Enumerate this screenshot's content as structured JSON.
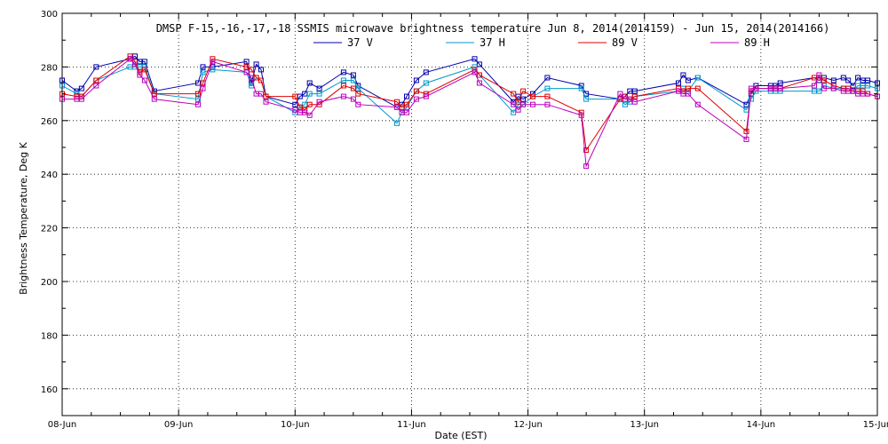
{
  "chart_data": {
    "type": "line",
    "title": "DMSP F-15,-16,-17,-18 SSMIS microwave brightness temperature Jun  8, 2014(2014159) - Jun 15, 2014(2014166)",
    "xlabel": "Date (EST)",
    "ylabel": "Brightness Temperature, Deg K",
    "xlim": [
      "2014-06-08T00:00",
      "2014-06-15T00:00"
    ],
    "ylim": [
      150,
      300
    ],
    "x_tick_labels": [
      "08-Jun",
      "09-Jun",
      "10-Jun",
      "11-Jun",
      "12-Jun",
      "13-Jun",
      "14-Jun",
      "15-Jun"
    ],
    "y_tick_labels": [
      "160",
      "180",
      "200",
      "220",
      "240",
      "260",
      "280",
      "300"
    ],
    "y_ticks": [
      160,
      180,
      200,
      220,
      240,
      260,
      280,
      300
    ],
    "grid": true,
    "legend_position": "top",
    "series": [
      {
        "name": "37 V",
        "color": "#0000aa",
        "x": [
          "2014-06-08T00:00",
          "2014-06-08T03:00",
          "2014-06-08T04:00",
          "2014-06-08T07:00",
          "2014-06-08T14:00",
          "2014-06-08T15:00",
          "2014-06-08T16:00",
          "2014-06-08T17:00",
          "2014-06-08T19:00",
          "2014-06-09T04:00",
          "2014-06-09T05:00",
          "2014-06-09T07:00",
          "2014-06-09T14:00",
          "2014-06-09T15:00",
          "2014-06-09T16:00",
          "2014-06-09T17:00",
          "2014-06-09T18:00",
          "2014-06-10T00:00",
          "2014-06-10T01:00",
          "2014-06-10T02:00",
          "2014-06-10T03:00",
          "2014-06-10T05:00",
          "2014-06-10T10:00",
          "2014-06-10T12:00",
          "2014-06-10T13:00",
          "2014-06-10T21:00",
          "2014-06-10T22:00",
          "2014-06-10T23:00",
          "2014-06-11T01:00",
          "2014-06-11T03:00",
          "2014-06-11T13:00",
          "2014-06-11T14:00",
          "2014-06-11T21:00",
          "2014-06-11T22:00",
          "2014-06-11T23:00",
          "2014-06-12T01:00",
          "2014-06-12T04:00",
          "2014-06-12T11:00",
          "2014-06-12T12:00",
          "2014-06-12T19:00",
          "2014-06-12T20:00",
          "2014-06-12T21:00",
          "2014-06-12T22:00",
          "2014-06-13T07:00",
          "2014-06-13T08:00",
          "2014-06-13T09:00",
          "2014-06-13T11:00",
          "2014-06-13T21:00",
          "2014-06-13T22:00",
          "2014-06-13T23:00",
          "2014-06-14T02:00",
          "2014-06-14T03:00",
          "2014-06-14T04:00",
          "2014-06-14T11:00",
          "2014-06-14T12:00",
          "2014-06-14T13:00",
          "2014-06-14T15:00",
          "2014-06-14T17:00",
          "2014-06-14T18:00",
          "2014-06-14T19:00",
          "2014-06-14T20:00",
          "2014-06-14T21:00",
          "2014-06-14T22:00",
          "2014-06-15T00:00"
        ],
        "values": [
          275,
          271,
          272,
          280,
          283,
          284,
          282,
          282,
          271,
          274,
          280,
          280,
          282,
          274,
          281,
          279,
          269,
          266,
          269,
          270,
          274,
          272,
          278,
          277,
          273,
          265,
          266,
          269,
          275,
          278,
          283,
          281,
          267,
          269,
          268,
          270,
          276,
          273,
          270,
          268,
          269,
          271,
          271,
          274,
          277,
          275,
          276,
          266,
          270,
          273,
          273,
          273,
          274,
          276,
          275,
          276,
          275,
          276,
          275,
          273,
          276,
          275,
          275,
          274
        ]
      },
      {
        "name": "37 H",
        "color": "#0099cc",
        "x": [
          "2014-06-08T00:00",
          "2014-06-08T03:00",
          "2014-06-08T04:00",
          "2014-06-08T07:00",
          "2014-06-08T14:00",
          "2014-06-08T15:00",
          "2014-06-08T16:00",
          "2014-06-08T17:00",
          "2014-06-08T19:00",
          "2014-06-09T04:00",
          "2014-06-09T05:00",
          "2014-06-09T07:00",
          "2014-06-09T14:00",
          "2014-06-09T15:00",
          "2014-06-09T16:00",
          "2014-06-09T17:00",
          "2014-06-09T18:00",
          "2014-06-10T00:00",
          "2014-06-10T01:00",
          "2014-06-10T02:00",
          "2014-06-10T03:00",
          "2014-06-10T05:00",
          "2014-06-10T10:00",
          "2014-06-10T12:00",
          "2014-06-10T13:00",
          "2014-06-10T21:00",
          "2014-06-10T22:00",
          "2014-06-10T23:00",
          "2014-06-11T01:00",
          "2014-06-11T03:00",
          "2014-06-11T13:00",
          "2014-06-11T14:00",
          "2014-06-11T21:00",
          "2014-06-11T22:00",
          "2014-06-11T23:00",
          "2014-06-12T01:00",
          "2014-06-12T04:00",
          "2014-06-12T11:00",
          "2014-06-12T12:00",
          "2014-06-12T19:00",
          "2014-06-12T20:00",
          "2014-06-12T21:00",
          "2014-06-12T22:00",
          "2014-06-13T07:00",
          "2014-06-13T08:00",
          "2014-06-13T09:00",
          "2014-06-13T11:00",
          "2014-06-13T21:00",
          "2014-06-13T22:00",
          "2014-06-13T23:00",
          "2014-06-14T02:00",
          "2014-06-14T03:00",
          "2014-06-14T04:00",
          "2014-06-14T11:00",
          "2014-06-14T12:00",
          "2014-06-14T13:00",
          "2014-06-14T15:00",
          "2014-06-14T17:00",
          "2014-06-14T18:00",
          "2014-06-14T19:00",
          "2014-06-14T20:00",
          "2014-06-14T21:00",
          "2014-06-14T22:00",
          "2014-06-15T00:00"
        ],
        "values": [
          273,
          270,
          269,
          275,
          280,
          280,
          280,
          280,
          270,
          268,
          278,
          279,
          278,
          273,
          276,
          275,
          269,
          263,
          265,
          266,
          270,
          270,
          275,
          275,
          272,
          259,
          263,
          265,
          271,
          274,
          280,
          277,
          263,
          266,
          266,
          269,
          272,
          272,
          268,
          268,
          266,
          267,
          269,
          271,
          272,
          271,
          276,
          264,
          268,
          271,
          271,
          271,
          271,
          271,
          271,
          273,
          272,
          272,
          272,
          271,
          273,
          273,
          273,
          272
        ]
      },
      {
        "name": "89 V",
        "color": "#dd0000",
        "x": [
          "2014-06-08T00:00",
          "2014-06-08T03:00",
          "2014-06-08T04:00",
          "2014-06-08T07:00",
          "2014-06-08T14:00",
          "2014-06-08T15:00",
          "2014-06-08T16:00",
          "2014-06-08T17:00",
          "2014-06-08T19:00",
          "2014-06-09T04:00",
          "2014-06-09T05:00",
          "2014-06-09T07:00",
          "2014-06-09T14:00",
          "2014-06-09T15:00",
          "2014-06-09T16:00",
          "2014-06-09T17:00",
          "2014-06-09T18:00",
          "2014-06-10T00:00",
          "2014-06-10T01:00",
          "2014-06-10T02:00",
          "2014-06-10T03:00",
          "2014-06-10T05:00",
          "2014-06-10T10:00",
          "2014-06-10T12:00",
          "2014-06-10T13:00",
          "2014-06-10T21:00",
          "2014-06-10T22:00",
          "2014-06-10T23:00",
          "2014-06-11T01:00",
          "2014-06-11T03:00",
          "2014-06-11T13:00",
          "2014-06-11T14:00",
          "2014-06-11T21:00",
          "2014-06-11T22:00",
          "2014-06-11T23:00",
          "2014-06-12T01:00",
          "2014-06-12T04:00",
          "2014-06-12T11:00",
          "2014-06-12T12:00",
          "2014-06-12T19:00",
          "2014-06-12T20:00",
          "2014-06-12T21:00",
          "2014-06-12T22:00",
          "2014-06-13T07:00",
          "2014-06-13T08:00",
          "2014-06-13T09:00",
          "2014-06-13T11:00",
          "2014-06-13T21:00",
          "2014-06-13T22:00",
          "2014-06-13T23:00",
          "2014-06-14T02:00",
          "2014-06-14T03:00",
          "2014-06-14T04:00",
          "2014-06-14T11:00",
          "2014-06-14T12:00",
          "2014-06-14T13:00",
          "2014-06-14T15:00",
          "2014-06-14T17:00",
          "2014-06-14T18:00",
          "2014-06-14T19:00",
          "2014-06-14T20:00",
          "2014-06-14T21:00",
          "2014-06-14T22:00",
          "2014-06-15T00:00"
        ],
        "values": [
          270,
          269,
          269,
          275,
          284,
          282,
          278,
          279,
          270,
          270,
          274,
          283,
          280,
          279,
          276,
          275,
          269,
          269,
          265,
          264,
          266,
          266,
          273,
          272,
          270,
          267,
          265,
          266,
          271,
          270,
          279,
          277,
          270,
          267,
          271,
          269,
          269,
          263,
          249,
          268,
          269,
          268,
          269,
          272,
          271,
          272,
          272,
          256,
          271,
          272,
          272,
          272,
          272,
          276,
          276,
          275,
          273,
          272,
          272,
          271,
          271,
          271,
          270,
          269
        ]
      },
      {
        "name": "89 H",
        "color": "#bb00bb",
        "x": [
          "2014-06-08T00:00",
          "2014-06-08T03:00",
          "2014-06-08T04:00",
          "2014-06-08T07:00",
          "2014-06-08T14:00",
          "2014-06-08T15:00",
          "2014-06-08T16:00",
          "2014-06-08T17:00",
          "2014-06-08T19:00",
          "2014-06-09T04:00",
          "2014-06-09T05:00",
          "2014-06-09T07:00",
          "2014-06-09T14:00",
          "2014-06-09T15:00",
          "2014-06-09T16:00",
          "2014-06-09T17:00",
          "2014-06-09T18:00",
          "2014-06-10T00:00",
          "2014-06-10T01:00",
          "2014-06-10T02:00",
          "2014-06-10T03:00",
          "2014-06-10T05:00",
          "2014-06-10T10:00",
          "2014-06-10T12:00",
          "2014-06-10T13:00",
          "2014-06-10T21:00",
          "2014-06-10T22:00",
          "2014-06-10T23:00",
          "2014-06-11T01:00",
          "2014-06-11T03:00",
          "2014-06-11T13:00",
          "2014-06-11T14:00",
          "2014-06-11T21:00",
          "2014-06-11T22:00",
          "2014-06-11T23:00",
          "2014-06-12T01:00",
          "2014-06-12T04:00",
          "2014-06-12T11:00",
          "2014-06-12T12:00",
          "2014-06-12T19:00",
          "2014-06-12T20:00",
          "2014-06-12T21:00",
          "2014-06-12T22:00",
          "2014-06-13T07:00",
          "2014-06-13T08:00",
          "2014-06-13T09:00",
          "2014-06-13T11:00",
          "2014-06-13T21:00",
          "2014-06-13T22:00",
          "2014-06-13T23:00",
          "2014-06-14T02:00",
          "2014-06-14T03:00",
          "2014-06-14T04:00",
          "2014-06-14T11:00",
          "2014-06-14T12:00",
          "2014-06-14T13:00",
          "2014-06-14T15:00",
          "2014-06-14T17:00",
          "2014-06-14T18:00",
          "2014-06-14T19:00",
          "2014-06-14T20:00",
          "2014-06-14T21:00",
          "2014-06-14T22:00",
          "2014-06-15T00:00"
        ],
        "values": [
          268,
          268,
          268,
          273,
          283,
          281,
          277,
          275,
          268,
          266,
          272,
          282,
          278,
          276,
          270,
          270,
          267,
          264,
          263,
          263,
          262,
          267,
          269,
          268,
          266,
          265,
          263,
          263,
          268,
          269,
          278,
          274,
          266,
          264,
          266,
          266,
          266,
          262,
          243,
          270,
          268,
          268,
          267,
          271,
          270,
          270,
          266,
          253,
          272,
          272,
          272,
          272,
          272,
          273,
          277,
          272,
          272,
          271,
          271,
          271,
          270,
          270,
          270,
          269
        ]
      }
    ]
  }
}
